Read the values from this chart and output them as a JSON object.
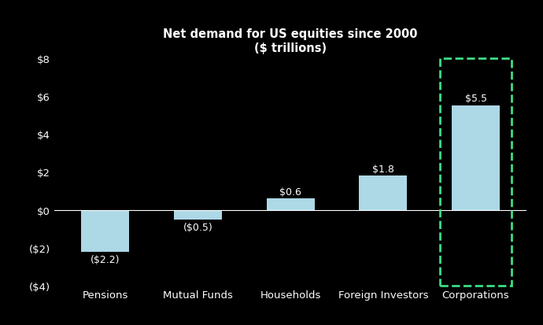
{
  "categories": [
    "Pensions",
    "Mutual Funds",
    "Households",
    "Foreign Investors",
    "Corporations"
  ],
  "values": [
    -2.2,
    -0.5,
    0.6,
    1.8,
    5.5
  ],
  "labels": [
    "($2.2)",
    "($0.5)",
    "$0.6",
    "$1.8",
    "$5.5"
  ],
  "bar_color": "#add8e6",
  "background_color": "#000000",
  "text_color": "#ffffff",
  "title_line1": "Net demand for US equities since 2000",
  "title_line2": "($ trillions)",
  "ylim": [
    -4,
    8
  ],
  "yticks": [
    -4,
    -2,
    0,
    2,
    4,
    6,
    8
  ],
  "ytick_labels": [
    "($4)",
    "($2)",
    "$0",
    "$2",
    "$4",
    "$6",
    "$8"
  ],
  "highlight_index": 4,
  "highlight_color": "#3ddc84",
  "title_fontsize": 10.5,
  "label_fontsize": 9,
  "tick_fontsize": 9.5
}
